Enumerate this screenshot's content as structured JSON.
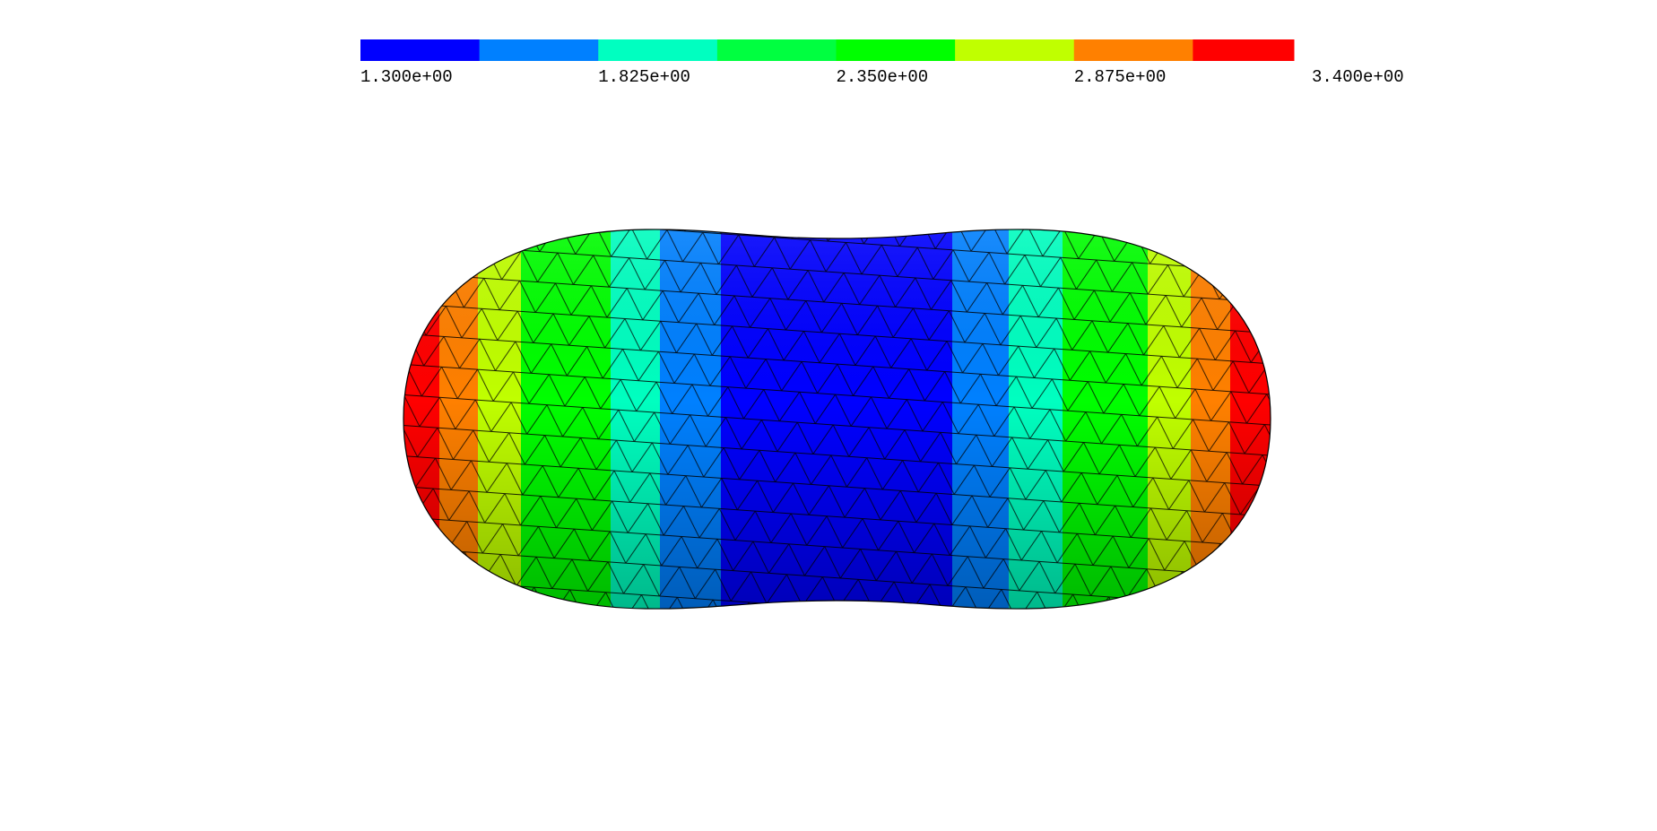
{
  "colorbar": {
    "ticks": [
      {
        "value": 1.3,
        "label": "1.300e+00"
      },
      {
        "value": 1.825,
        "label": "1.825e+00"
      },
      {
        "value": 2.35,
        "label": "2.350e+00"
      },
      {
        "value": 2.875,
        "label": "2.875e+00"
      },
      {
        "value": 3.4,
        "label": "3.400e+00"
      }
    ],
    "colors": [
      "#0000ff",
      "#0080ff",
      "#00ffc0",
      "#00ff40",
      "#00ff00",
      "#c0ff00",
      "#ff8000",
      "#ff0000"
    ]
  }
}
